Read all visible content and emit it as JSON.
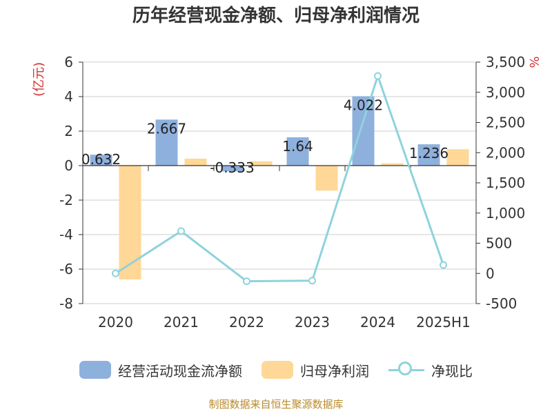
{
  "title": "历年经营现金净额、归母净利润情况",
  "source_text": "制图数据来自恒生聚源数据库",
  "chart_data": {
    "type": "bar",
    "categories": [
      "2020",
      "2021",
      "2022",
      "2023",
      "2024",
      "2025H1"
    ],
    "series": [
      {
        "name": "经营活动现金流净额",
        "kind": "bar",
        "axis": "left",
        "color": "#8eb0dd",
        "values": [
          0.632,
          2.667,
          -0.333,
          1.64,
          4.022,
          1.236
        ],
        "labels": [
          "0.632",
          "2.667",
          "-0.333",
          "1.64",
          "4.022",
          "1.236"
        ]
      },
      {
        "name": "归母净利润",
        "kind": "bar",
        "axis": "left",
        "color": "#ffd796",
        "values": [
          -6.6,
          0.4,
          0.25,
          -1.45,
          0.13,
          0.95
        ]
      },
      {
        "name": "净现比",
        "kind": "line",
        "axis": "right",
        "color": "#8ed3dc",
        "values": [
          0,
          700,
          -130,
          -120,
          3270,
          140
        ]
      }
    ],
    "left_axis": {
      "label": "(亿元)",
      "min": -8,
      "max": 6,
      "ticks": [
        "6",
        "4",
        "2",
        "0",
        "-2",
        "-4",
        "-6",
        "-8"
      ],
      "tick_values": [
        6,
        4,
        2,
        0,
        -2,
        -4,
        -6,
        -8
      ]
    },
    "right_axis": {
      "label": "%",
      "min": -500,
      "max": 3500,
      "ticks": [
        "3,500",
        "3,000",
        "2,500",
        "2,000",
        "1,500",
        "1,000",
        "500",
        "0",
        "-500"
      ],
      "tick_values": [
        3500,
        3000,
        2500,
        2000,
        1500,
        1000,
        500,
        0,
        -500
      ]
    },
    "grid": true,
    "legend_position": "bottom-center"
  }
}
